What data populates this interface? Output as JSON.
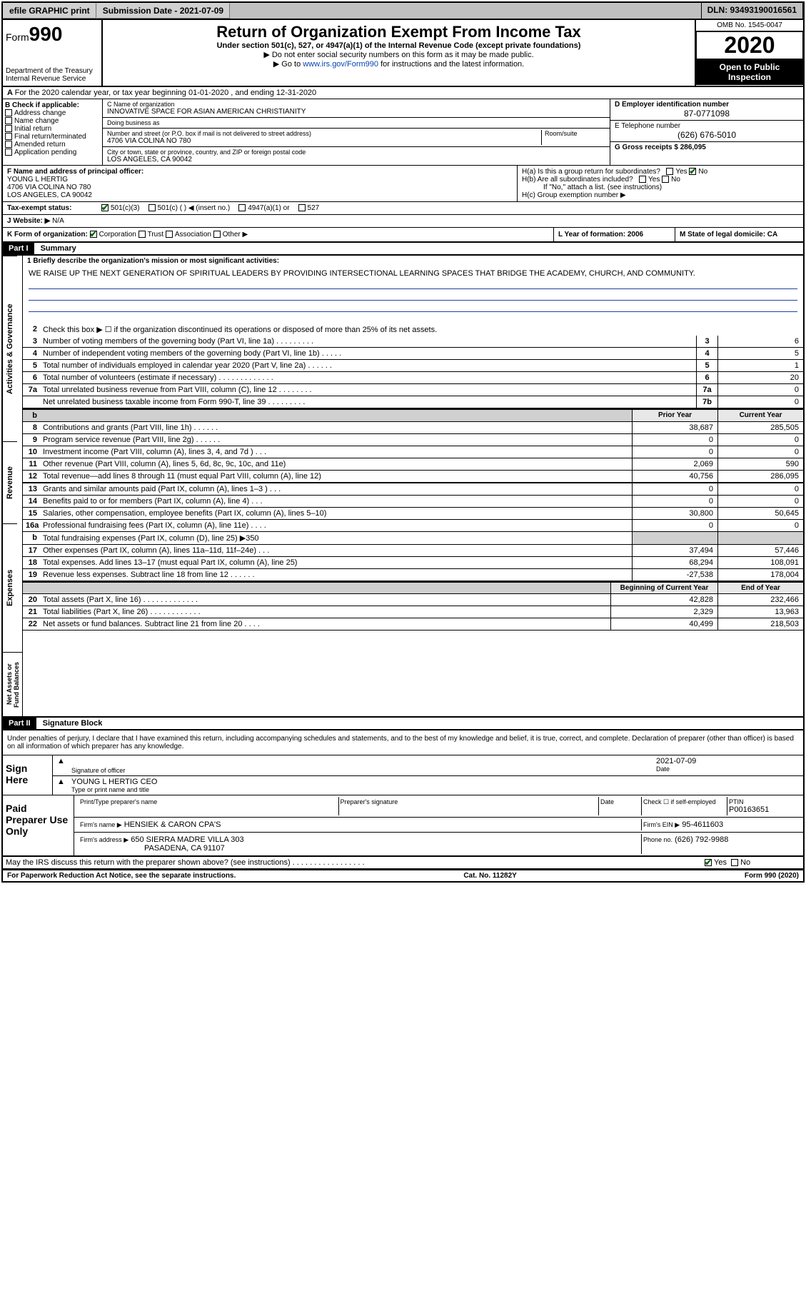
{
  "topbar": {
    "efile": "efile GRAPHIC print",
    "submission_label": "Submission Date - 2021-07-09",
    "dln_label": "DLN: 93493190016561"
  },
  "header": {
    "form_word": "Form",
    "form_number": "990",
    "dept": "Department of the Treasury",
    "irs": "Internal Revenue Service",
    "title": "Return of Organization Exempt From Income Tax",
    "subtitle": "Under section 501(c), 527, or 4947(a)(1) of the Internal Revenue Code (except private foundations)",
    "note1": "▶ Do not enter social security numbers on this form as it may be made public.",
    "note2_prefix": "▶ Go to ",
    "note2_link": "www.irs.gov/Form990",
    "note2_suffix": " for instructions and the latest information.",
    "omb": "OMB No. 1545-0047",
    "year": "2020",
    "open_public": "Open to Public Inspection"
  },
  "line_a": "For the 2020 calendar year, or tax year beginning 01-01-2020   , and ending 12-31-2020",
  "section_b": {
    "header": "B Check if applicable:",
    "items": [
      "Address change",
      "Name change",
      "Initial return",
      "Final return/terminated",
      "Amended return",
      "Application pending"
    ]
  },
  "section_c": {
    "name_label": "C Name of organization",
    "name": "INNOVATIVE SPACE FOR ASIAN AMERICAN CHRISTIANITY",
    "dba_label": "Doing business as",
    "dba": "",
    "addr_label": "Number and street (or P.O. box if mail is not delivered to street address)",
    "room_label": "Room/suite",
    "addr": "4706 VIA COLINA NO 780",
    "city_label": "City or town, state or province, country, and ZIP or foreign postal code",
    "city": "LOS ANGELES, CA  90042"
  },
  "section_d": {
    "ein_label": "D Employer identification number",
    "ein": "87-0771098",
    "phone_label": "E Telephone number",
    "phone": "(626) 676-5010",
    "gross_label": "G Gross receipts $ 286,095"
  },
  "section_f": {
    "label": "F  Name and address of principal officer:",
    "name": "YOUNG L HERTIG",
    "addr1": "4706 VIA COLINA NO 780",
    "addr2": "LOS ANGELES, CA  90042"
  },
  "section_h": {
    "ha": "H(a)  Is this a group return for subordinates?",
    "hb": "H(b)  Are all subordinates included?",
    "hb_note": "If \"No,\" attach a list. (see instructions)",
    "hc": "H(c)  Group exemption number ▶"
  },
  "section_i": {
    "label": "Tax-exempt status:",
    "opts": [
      "501(c)(3)",
      "501(c) (  ) ◀ (insert no.)",
      "4947(a)(1) or",
      "527"
    ]
  },
  "section_j": {
    "label": "J   Website: ▶",
    "val": "N/A"
  },
  "section_k": {
    "label": "K Form of organization:",
    "opts": [
      "Corporation",
      "Trust",
      "Association",
      "Other ▶"
    ]
  },
  "section_l": {
    "label": "L Year of formation: 2006"
  },
  "section_m": {
    "label": "M State of legal domicile: CA"
  },
  "part1": {
    "header": "Part I",
    "title": "Summary",
    "line1_label": "1  Briefly describe the organization's mission or most significant activities:",
    "mission": "WE RAISE UP THE NEXT GENERATION OF SPIRITUAL LEADERS BY PROVIDING INTERSECTIONAL LEARNING SPACES THAT BRIDGE THE ACADEMY, CHURCH, AND COMMUNITY.",
    "line2": "Check this box ▶ ☐  if the organization discontinued its operations or disposed of more than 25% of its net assets.",
    "side_tabs": [
      "Activities & Governance",
      "Revenue",
      "Expenses",
      "Net Assets or Fund Balances"
    ],
    "gov_rows": [
      {
        "n": "3",
        "t": "Number of voting members of the governing body (Part VI, line 1a)  .   .   .   .   .   .   .   .   .",
        "box": "3",
        "v": "6"
      },
      {
        "n": "4",
        "t": "Number of independent voting members of the governing body (Part VI, line 1b)  .   .   .   .   .",
        "box": "4",
        "v": "5"
      },
      {
        "n": "5",
        "t": "Total number of individuals employed in calendar year 2020 (Part V, line 2a)  .   .   .   .   .   .",
        "box": "5",
        "v": "1"
      },
      {
        "n": "6",
        "t": "Total number of volunteers (estimate if necessary)   .   .   .   .   .   .   .   .   .   .   .   .   .",
        "box": "6",
        "v": "20"
      },
      {
        "n": "7a",
        "t": "Total unrelated business revenue from Part VIII, column (C), line 12  .   .   .   .   .   .   .   .",
        "box": "7a",
        "v": "0"
      },
      {
        "n": "",
        "t": "Net unrelated business taxable income from Form 990-T, line 39  .   .   .   .   .   .   .   .   .",
        "box": "7b",
        "v": "0"
      }
    ],
    "col_headers": {
      "prior": "Prior Year",
      "current": "Current Year"
    },
    "rev_rows": [
      {
        "n": "8",
        "t": "Contributions and grants (Part VIII, line 1h)   .   .   .   .   .   .",
        "p": "38,687",
        "c": "285,505"
      },
      {
        "n": "9",
        "t": "Program service revenue (Part VIII, line 2g)   .   .   .   .   .   .",
        "p": "0",
        "c": "0"
      },
      {
        "n": "10",
        "t": "Investment income (Part VIII, column (A), lines 3, 4, and 7d )   .   .   .",
        "p": "0",
        "c": "0"
      },
      {
        "n": "11",
        "t": "Other revenue (Part VIII, column (A), lines 5, 6d, 8c, 9c, 10c, and 11e)",
        "p": "2,069",
        "c": "590"
      },
      {
        "n": "12",
        "t": "Total revenue—add lines 8 through 11 (must equal Part VIII, column (A), line 12)",
        "p": "40,756",
        "c": "286,095"
      }
    ],
    "exp_rows": [
      {
        "n": "13",
        "t": "Grants and similar amounts paid (Part IX, column (A), lines 1–3 )  .   .   .",
        "p": "0",
        "c": "0"
      },
      {
        "n": "14",
        "t": "Benefits paid to or for members (Part IX, column (A), line 4)   .   .   .",
        "p": "0",
        "c": "0"
      },
      {
        "n": "15",
        "t": "Salaries, other compensation, employee benefits (Part IX, column (A), lines 5–10)",
        "p": "30,800",
        "c": "50,645"
      },
      {
        "n": "16a",
        "t": "Professional fundraising fees (Part IX, column (A), line 11e)   .   .   .   .",
        "p": "0",
        "c": "0"
      },
      {
        "n": "b",
        "t": "Total fundraising expenses (Part IX, column (D), line 25) ▶350",
        "p": "",
        "c": "",
        "shaded": true
      },
      {
        "n": "17",
        "t": "Other expenses (Part IX, column (A), lines 11a–11d, 11f–24e)   .   .   .",
        "p": "37,494",
        "c": "57,446"
      },
      {
        "n": "18",
        "t": "Total expenses. Add lines 13–17 (must equal Part IX, column (A), line 25)",
        "p": "68,294",
        "c": "108,091"
      },
      {
        "n": "19",
        "t": "Revenue less expenses. Subtract line 18 from line 12  .   .   .   .   .   .",
        "p": "-27,538",
        "c": "178,004"
      }
    ],
    "net_headers": {
      "begin": "Beginning of Current Year",
      "end": "End of Year"
    },
    "net_rows": [
      {
        "n": "20",
        "t": "Total assets (Part X, line 16)  .   .   .   .   .   .   .   .   .   .   .   .   .",
        "p": "42,828",
        "c": "232,466"
      },
      {
        "n": "21",
        "t": "Total liabilities (Part X, line 26)  .   .   .   .   .   .   .   .   .   .   .   .",
        "p": "2,329",
        "c": "13,963"
      },
      {
        "n": "22",
        "t": "Net assets or fund balances. Subtract line 21 from line 20   .   .   .   .",
        "p": "40,499",
        "c": "218,503"
      }
    ]
  },
  "part2": {
    "header": "Part II",
    "title": "Signature Block",
    "perjury": "Under penalties of perjury, I declare that I have examined this return, including accompanying schedules and statements, and to the best of my knowledge and belief, it is true, correct, and complete. Declaration of preparer (other than officer) is based on all information of which preparer has any knowledge.",
    "sign_here": "Sign Here",
    "sig_officer": "Signature of officer",
    "sig_date": "2021-07-09",
    "date_lbl": "Date",
    "officer_name": "YOUNG L HERTIG  CEO",
    "type_name": "Type or print name and title",
    "paid_prep": "Paid Preparer Use Only",
    "prep_name_lbl": "Print/Type preparer's name",
    "prep_sig_lbl": "Preparer's signature",
    "prep_date_lbl": "Date",
    "check_self": "Check ☐ if self-employed",
    "ptin_lbl": "PTIN",
    "ptin": "P00163651",
    "firm_name_lbl": "Firm's name    ▶",
    "firm_name": "HENSIEK & CARON CPA'S",
    "firm_ein_lbl": "Firm's EIN ▶",
    "firm_ein": "95-4611603",
    "firm_addr_lbl": "Firm's address ▶",
    "firm_addr1": "650 SIERRA MADRE VILLA 303",
    "firm_addr2": "PASADENA, CA  91107",
    "firm_phone_lbl": "Phone no.",
    "firm_phone": "(626) 792-9988",
    "discuss": "May the IRS discuss this return with the preparer shown above? (see instructions)   .   .   .   .   .   .   .   .   .   .   .   .   .   .   .   .   ."
  },
  "footer": {
    "left": "For Paperwork Reduction Act Notice, see the separate instructions.",
    "mid": "Cat. No. 11282Y",
    "right": "Form 990 (2020)"
  }
}
